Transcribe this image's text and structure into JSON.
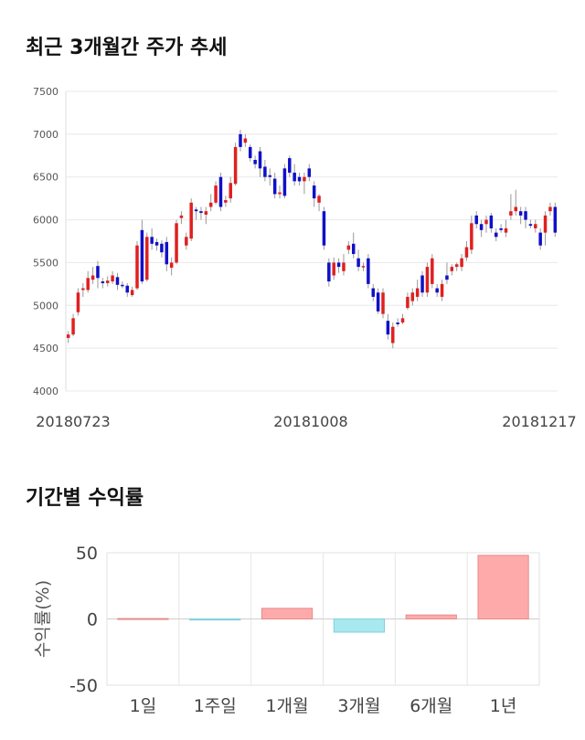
{
  "titles": {
    "price_trend": "최근 3개월간 주가 추세",
    "period_returns": "기간별 수익률"
  },
  "chart_data": [
    {
      "type": "candlestick",
      "title": "최근 3개월간 주가 추세",
      "ylim": [
        4000,
        7500
      ],
      "y_ticks": [
        4000,
        4500,
        5000,
        5500,
        6000,
        6500,
        7000,
        7500
      ],
      "x_tick_labels": [
        "20180723",
        "20181008",
        "20181217"
      ],
      "grid": true,
      "colors": {
        "up": "#e02020",
        "down": "#1010c8",
        "wick": "#999999"
      },
      "candles": [
        [
          4620,
          4660,
          4560,
          4700
        ],
        [
          4660,
          4850,
          4640,
          4900
        ],
        [
          4920,
          5150,
          4880,
          5200
        ],
        [
          5180,
          5200,
          5100,
          5260
        ],
        [
          5180,
          5320,
          5150,
          5400
        ],
        [
          5300,
          5350,
          5250,
          5450
        ],
        [
          5460,
          5320,
          5200,
          5520
        ],
        [
          5280,
          5260,
          5200,
          5320
        ],
        [
          5260,
          5290,
          5220,
          5340
        ],
        [
          5280,
          5350,
          5250,
          5400
        ],
        [
          5330,
          5240,
          5180,
          5380
        ],
        [
          5240,
          5230,
          5200,
          5280
        ],
        [
          5230,
          5150,
          5100,
          5260
        ],
        [
          5120,
          5180,
          5100,
          5220
        ],
        [
          5200,
          5700,
          5180,
          5750
        ],
        [
          5880,
          5280,
          5250,
          6000
        ],
        [
          5300,
          5800,
          5280,
          5850
        ],
        [
          5800,
          5720,
          5650,
          5900
        ],
        [
          5740,
          5700,
          5640,
          5780
        ],
        [
          5720,
          5620,
          5560,
          5760
        ],
        [
          5740,
          5480,
          5400,
          5800
        ],
        [
          5440,
          5500,
          5350,
          5560
        ],
        [
          5500,
          5960,
          5480,
          6000
        ],
        [
          6020,
          6050,
          5950,
          6100
        ],
        [
          5700,
          5800,
          5650,
          5850
        ],
        [
          5780,
          6200,
          5750,
          6250
        ],
        [
          6120,
          6100,
          6000,
          6150
        ],
        [
          6100,
          6080,
          6000,
          6150
        ],
        [
          6060,
          6100,
          5950,
          6150
        ],
        [
          6150,
          6200,
          6100,
          6300
        ],
        [
          6200,
          6400,
          6180,
          6450
        ],
        [
          6500,
          6150,
          6100,
          6550
        ],
        [
          6200,
          6230,
          6150,
          6280
        ],
        [
          6250,
          6430,
          6200,
          6500
        ],
        [
          6420,
          6850,
          6400,
          6900
        ],
        [
          7000,
          6850,
          6800,
          7050
        ],
        [
          6900,
          6950,
          6850,
          7000
        ],
        [
          6850,
          6720,
          6680,
          6880
        ],
        [
          6700,
          6650,
          6600,
          6750
        ],
        [
          6800,
          6600,
          6500,
          6850
        ],
        [
          6620,
          6500,
          6450,
          6700
        ],
        [
          6520,
          6500,
          6400,
          6600
        ],
        [
          6480,
          6300,
          6250,
          6550
        ],
        [
          6300,
          6320,
          6250,
          6400
        ],
        [
          6600,
          6280,
          6250,
          6650
        ],
        [
          6720,
          6550,
          6500,
          6750
        ],
        [
          6550,
          6450,
          6400,
          6650
        ],
        [
          6500,
          6450,
          6400,
          6550
        ],
        [
          6450,
          6500,
          6300,
          6550
        ],
        [
          6600,
          6500,
          6450,
          6650
        ],
        [
          6400,
          6250,
          6150,
          6450
        ],
        [
          6200,
          6280,
          6100,
          6300
        ],
        [
          6100,
          5700,
          5650,
          6150
        ],
        [
          5500,
          5280,
          5220,
          5550
        ],
        [
          5350,
          5500,
          5300,
          5560
        ],
        [
          5500,
          5450,
          5380,
          5550
        ],
        [
          5400,
          5500,
          5350,
          5600
        ],
        [
          5650,
          5700,
          5600,
          5750
        ],
        [
          5720,
          5600,
          5550,
          5850
        ],
        [
          5550,
          5450,
          5400,
          5650
        ],
        [
          5450,
          5460,
          5400,
          5500
        ],
        [
          5550,
          5250,
          5200,
          5600
        ],
        [
          5200,
          5100,
          5050,
          5250
        ],
        [
          5150,
          4930,
          4900,
          5200
        ],
        [
          4900,
          5150,
          4850,
          5200
        ],
        [
          4820,
          4660,
          4600,
          4900
        ],
        [
          4560,
          4750,
          4500,
          4800
        ],
        [
          4800,
          4780,
          4750,
          4850
        ],
        [
          4800,
          4850,
          4780,
          4900
        ],
        [
          4970,
          5100,
          4950,
          5150
        ],
        [
          5050,
          5150,
          5000,
          5200
        ],
        [
          5100,
          5200,
          5050,
          5300
        ],
        [
          5350,
          5150,
          5100,
          5400
        ],
        [
          5150,
          5450,
          5100,
          5500
        ],
        [
          5250,
          5550,
          5200,
          5600
        ],
        [
          5200,
          5150,
          5100,
          5250
        ],
        [
          5100,
          5250,
          5050,
          5300
        ],
        [
          5350,
          5300,
          5250,
          5500
        ],
        [
          5400,
          5450,
          5350,
          5480
        ],
        [
          5450,
          5480,
          5400,
          5500
        ],
        [
          5450,
          5550,
          5400,
          5600
        ],
        [
          5560,
          5680,
          5520,
          5750
        ],
        [
          5650,
          5960,
          5600,
          6050
        ],
        [
          6050,
          5950,
          5900,
          6100
        ],
        [
          5950,
          5880,
          5800,
          6000
        ],
        [
          5950,
          6000,
          5850,
          6050
        ],
        [
          6050,
          5900,
          5850,
          6080
        ],
        [
          5850,
          5800,
          5750,
          5900
        ],
        [
          5900,
          5880,
          5850,
          5950
        ],
        [
          5850,
          5900,
          5800,
          6000
        ],
        [
          6050,
          6100,
          6000,
          6300
        ],
        [
          6100,
          6150,
          6050,
          6350
        ],
        [
          6100,
          6050,
          5950,
          6150
        ],
        [
          6100,
          6000,
          5900,
          6150
        ],
        [
          5950,
          5930,
          5900,
          6000
        ],
        [
          5900,
          5950,
          5850,
          6000
        ],
        [
          5850,
          5700,
          5650,
          5900
        ],
        [
          5850,
          6050,
          5700,
          6100
        ],
        [
          6100,
          6150,
          6050,
          6200
        ],
        [
          6150,
          5850,
          5800,
          6200
        ]
      ]
    },
    {
      "type": "bar",
      "title": "기간별 수익률",
      "ylabel": "수익률(%)",
      "ylim": [
        -50,
        50
      ],
      "y_ticks": [
        -50,
        0,
        50
      ],
      "categories": [
        "1일",
        "1주일",
        "1개월",
        "3개월",
        "6개월",
        "1년"
      ],
      "values": [
        0.3,
        -0.8,
        8,
        -10,
        3,
        48
      ],
      "colors": {
        "positive": "#ffaaaa",
        "negative": "#aae8f0"
      },
      "grid": true
    }
  ]
}
